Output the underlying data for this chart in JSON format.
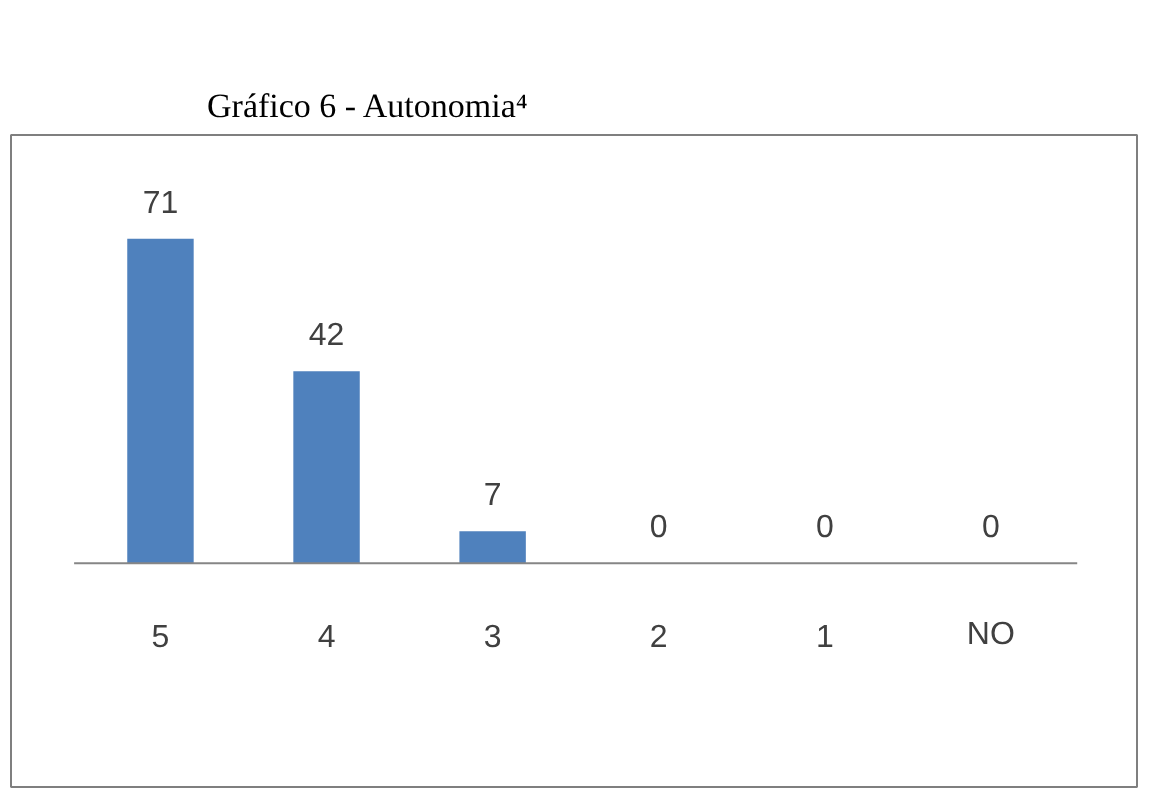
{
  "chart_data": {
    "type": "bar",
    "title": "Gráfico 6 - Autonomia⁴",
    "categories": [
      "5",
      "4",
      "3",
      "2",
      "1",
      "NO"
    ],
    "values": [
      71,
      42,
      7,
      0,
      0,
      0
    ],
    "color": "#4f81bd",
    "data_labels": true
  }
}
